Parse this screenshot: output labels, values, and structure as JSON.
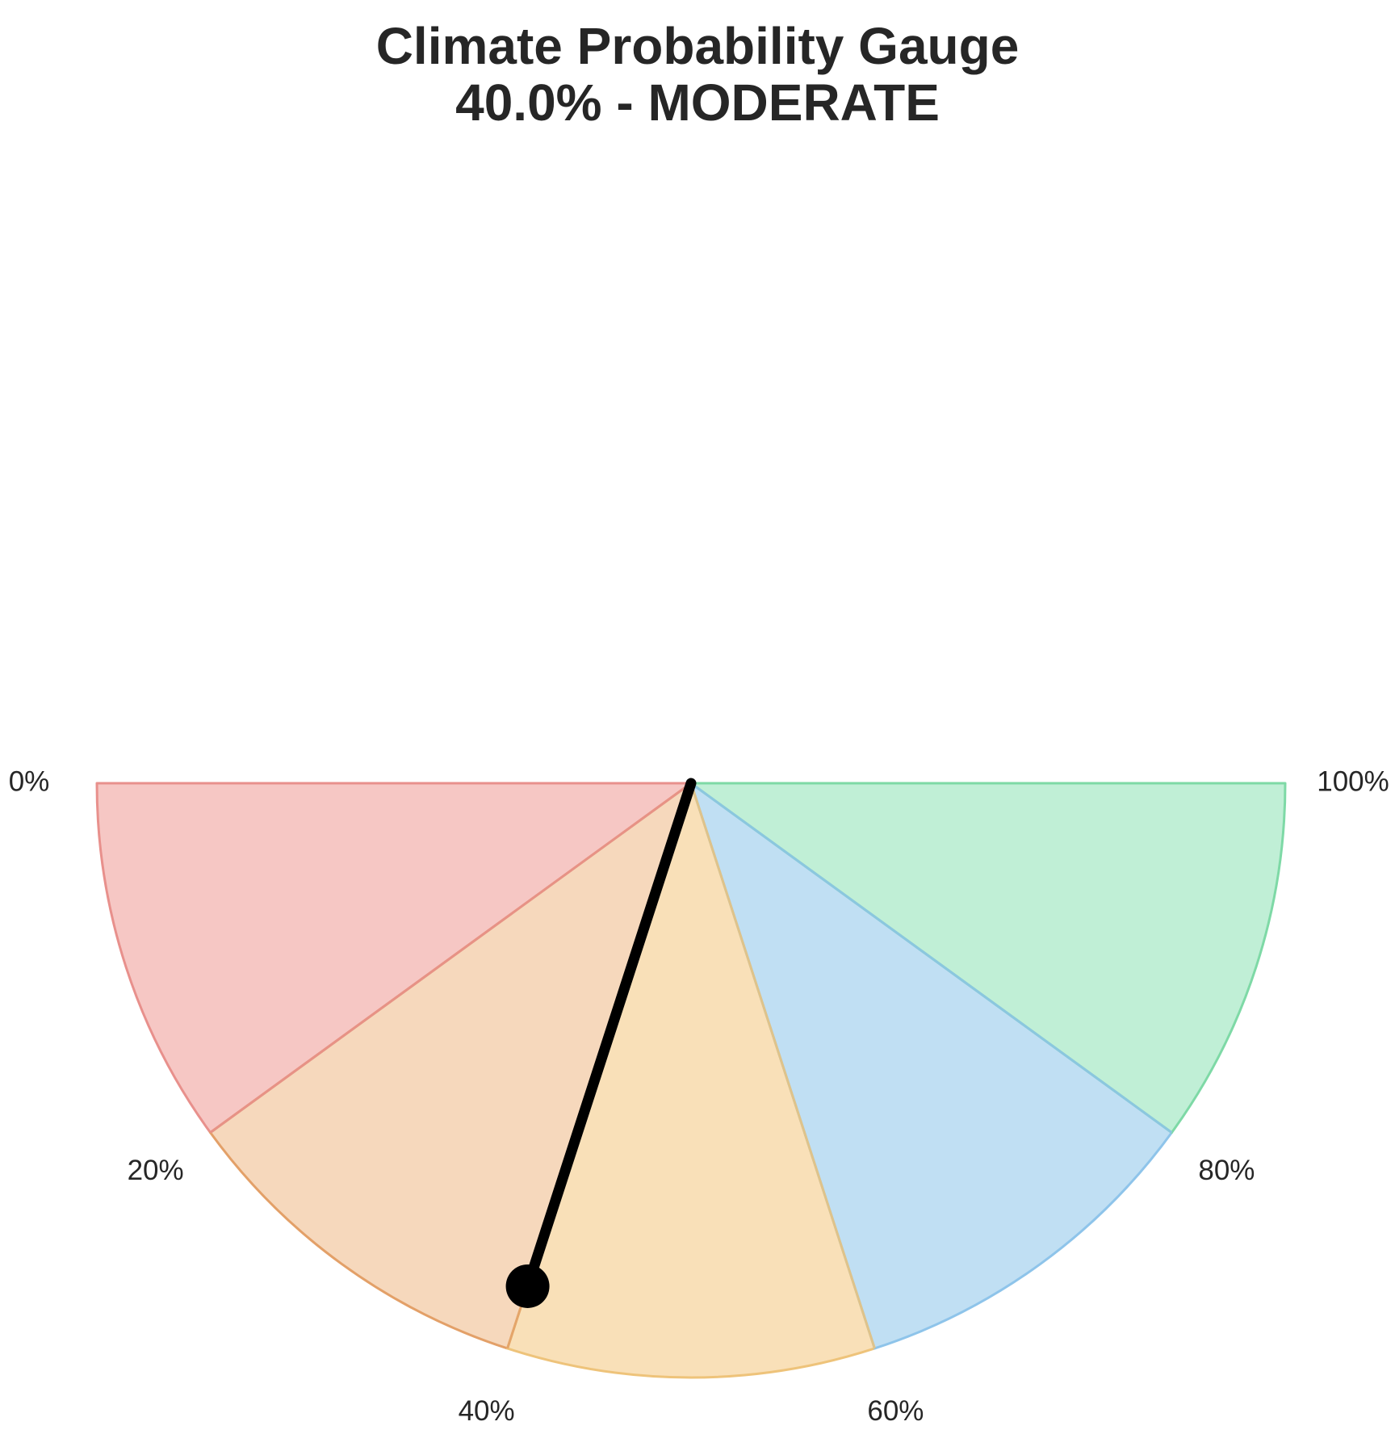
{
  "chart_data": {
    "type": "gauge",
    "title": "Climate Probability Gauge",
    "subtitle": "40.0% - MODERATE",
    "value": 40.0,
    "range": [
      0,
      100
    ],
    "ticks": [
      {
        "value": 0,
        "label": "0%"
      },
      {
        "value": 20,
        "label": "20%"
      },
      {
        "value": 40,
        "label": "40%"
      },
      {
        "value": 60,
        "label": "60%"
      },
      {
        "value": 80,
        "label": "80%"
      },
      {
        "value": 100,
        "label": "100%"
      }
    ],
    "bands": [
      {
        "from": 0,
        "to": 20,
        "color": "#f6c7c4",
        "edge": "#e8908c"
      },
      {
        "from": 20,
        "to": 40,
        "color": "#f6d8bc",
        "edge": "#e3a068"
      },
      {
        "from": 40,
        "to": 60,
        "color": "#f9e0b8",
        "edge": "#eec37a"
      },
      {
        "from": 60,
        "to": 80,
        "color": "#c0dff3",
        "edge": "#8ec4ea"
      },
      {
        "from": 80,
        "to": 100,
        "color": "#c0efd6",
        "edge": "#7ed9a6"
      }
    ],
    "needle_color": "#000000",
    "grid": false,
    "legend": "none"
  }
}
